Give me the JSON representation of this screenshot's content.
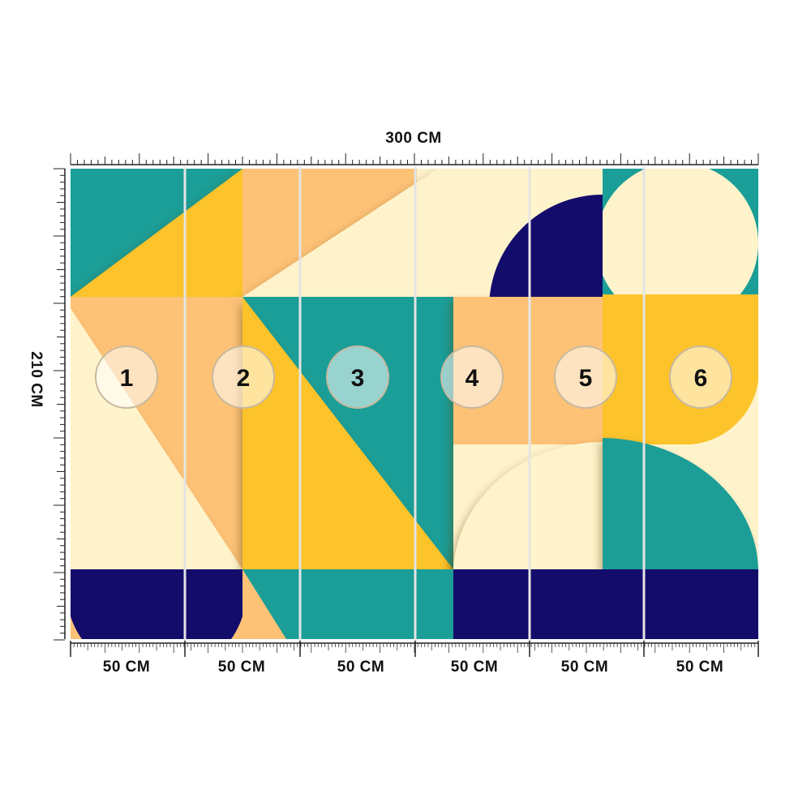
{
  "dimensions": {
    "total_width": "300 CM",
    "total_height": "210 CM"
  },
  "panels": [
    {
      "number": "1",
      "width": "50 CM"
    },
    {
      "number": "2",
      "width": "50 CM"
    },
    {
      "number": "3",
      "width": "50 CM"
    },
    {
      "number": "4",
      "width": "50 CM"
    },
    {
      "number": "5",
      "width": "50 CM"
    },
    {
      "number": "6",
      "width": "50 CM"
    }
  ],
  "colors": {
    "teal": "#1b9e97",
    "yellow": "#fcc32b",
    "peach": "#fdc276",
    "cream": "#fff3cb",
    "navy": "#130c6b",
    "seam": "#e4e4e4"
  }
}
